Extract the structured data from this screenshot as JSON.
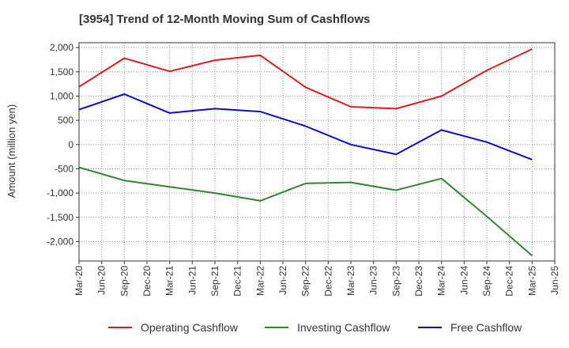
{
  "chart_data": {
    "type": "line",
    "title": "[3954]  Trend of 12-Month Moving Sum of Cashflows",
    "ylabel": "Amount (million yen)",
    "xlabel": "",
    "ylim": [
      -2400,
      2100
    ],
    "yticks": [
      2000,
      1500,
      1000,
      500,
      0,
      -500,
      -1000,
      -1500,
      -2000
    ],
    "ytick_labels": [
      "2,000",
      "1,500",
      "1,000",
      "500",
      "0",
      "-500",
      "-1,000",
      "-1,500",
      "-2,000"
    ],
    "categories": [
      "Mar-20",
      "Jun-20",
      "Sep-20",
      "Dec-20",
      "Mar-21",
      "Jun-21",
      "Sep-21",
      "Dec-21",
      "Mar-22",
      "Jun-22",
      "Sep-22",
      "Dec-22",
      "Mar-23",
      "Jun-23",
      "Sep-23",
      "Dec-23",
      "Mar-24",
      "Jun-24",
      "Sep-24",
      "Dec-24",
      "Mar-25",
      "Jun-25"
    ],
    "grid": true,
    "legend_position": "bottom",
    "series": [
      {
        "name": "Operating Cashflow",
        "color": "#e31a1c",
        "points": [
          [
            "Mar-20",
            1190
          ],
          [
            "Sep-20",
            1780
          ],
          [
            "Mar-21",
            1510
          ],
          [
            "Sep-21",
            1740
          ],
          [
            "Mar-22",
            1840
          ],
          [
            "Sep-22",
            1180
          ],
          [
            "Mar-23",
            780
          ],
          [
            "Sep-23",
            740
          ],
          [
            "Mar-24",
            1000
          ],
          [
            "Sep-24",
            1530
          ],
          [
            "Mar-25",
            1970
          ]
        ]
      },
      {
        "name": "Investing Cashflow",
        "color": "#2a8a2a",
        "points": [
          [
            "Mar-20",
            -470
          ],
          [
            "Sep-20",
            -740
          ],
          [
            "Mar-21",
            -870
          ],
          [
            "Sep-21",
            -1000
          ],
          [
            "Mar-22",
            -1160
          ],
          [
            "Sep-22",
            -800
          ],
          [
            "Mar-23",
            -780
          ],
          [
            "Sep-23",
            -940
          ],
          [
            "Mar-24",
            -700
          ],
          [
            "Sep-24",
            -1480
          ],
          [
            "Mar-25",
            -2290
          ]
        ]
      },
      {
        "name": "Free Cashflow",
        "color": "#0a0ad6",
        "points": [
          [
            "Mar-20",
            720
          ],
          [
            "Sep-20",
            1040
          ],
          [
            "Mar-21",
            650
          ],
          [
            "Sep-21",
            740
          ],
          [
            "Mar-22",
            680
          ],
          [
            "Sep-22",
            380
          ],
          [
            "Mar-23",
            0
          ],
          [
            "Sep-23",
            -200
          ],
          [
            "Mar-24",
            300
          ],
          [
            "Sep-24",
            50
          ],
          [
            "Mar-25",
            -310
          ]
        ]
      }
    ]
  }
}
